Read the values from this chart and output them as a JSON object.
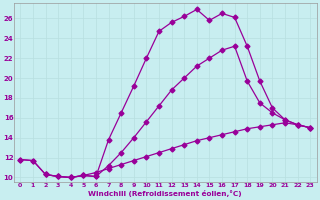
{
  "xlabel": "Windchill (Refroidissement éolien,°C)",
  "background_color": "#c8eef0",
  "line_color": "#990099",
  "grid_color": "#b8dfe0",
  "xlim": [
    -0.5,
    23.5
  ],
  "ylim": [
    9.5,
    27.5
  ],
  "xticks": [
    0,
    1,
    2,
    3,
    4,
    5,
    6,
    7,
    8,
    9,
    10,
    11,
    12,
    13,
    14,
    15,
    16,
    17,
    18,
    19,
    20,
    21,
    22,
    23
  ],
  "yticks": [
    10,
    12,
    14,
    16,
    18,
    20,
    22,
    24,
    26
  ],
  "line1_x": [
    0,
    1,
    2,
    3,
    4,
    5,
    6,
    7,
    8,
    9,
    10,
    11,
    12,
    13,
    14,
    15,
    16,
    17,
    18,
    19,
    20,
    21,
    22,
    23
  ],
  "line1_y": [
    11.8,
    11.7,
    10.3,
    10.1,
    10.0,
    10.2,
    10.1,
    13.8,
    16.5,
    19.2,
    22.0,
    24.7,
    25.6,
    26.2,
    26.9,
    25.8,
    26.5,
    26.1,
    23.2,
    19.7,
    17.0,
    15.8,
    15.3,
    15.0
  ],
  "line2_x": [
    2,
    3,
    4,
    5,
    6,
    7,
    8,
    9,
    10,
    11,
    12,
    13,
    14,
    15,
    16,
    17,
    18,
    19,
    20,
    21,
    22,
    23
  ],
  "line2_y": [
    10.3,
    10.1,
    10.0,
    10.2,
    10.1,
    11.2,
    12.5,
    14.0,
    15.6,
    17.2,
    18.8,
    20.0,
    21.2,
    22.0,
    22.8,
    23.2,
    19.7,
    17.5,
    16.5,
    15.8,
    15.3,
    15.0
  ],
  "line3_x": [
    0,
    1,
    2,
    3,
    4,
    5,
    6,
    7,
    8,
    9,
    10,
    11,
    12,
    13,
    14,
    15,
    16,
    17,
    18,
    19,
    20,
    21,
    22,
    23
  ],
  "line3_y": [
    11.8,
    11.7,
    10.3,
    10.1,
    10.0,
    10.2,
    10.5,
    10.9,
    11.3,
    11.7,
    12.1,
    12.5,
    12.9,
    13.3,
    13.7,
    14.0,
    14.3,
    14.6,
    14.9,
    15.1,
    15.3,
    15.5,
    15.3,
    15.0
  ],
  "marker": "D",
  "markersize": 2.5,
  "linewidth": 0.9
}
